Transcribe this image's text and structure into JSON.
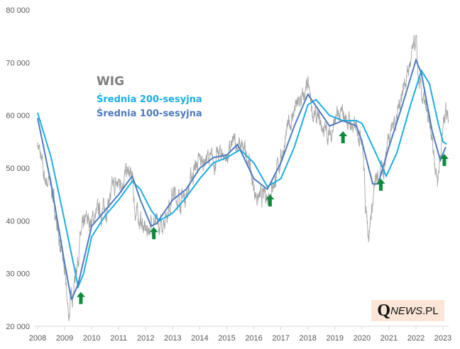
{
  "chart_data": {
    "type": "line",
    "title": "",
    "xlabel": "",
    "ylabel": "",
    "xlim": [
      2008,
      2023.3
    ],
    "ylim": [
      20000,
      80000
    ],
    "yticks": [
      "20 000",
      "30 000",
      "40 000",
      "50 000",
      "60 000",
      "70 000",
      "80 000"
    ],
    "ytick_values": [
      20000,
      30000,
      40000,
      50000,
      60000,
      70000,
      80000
    ],
    "xticks": [
      "2008",
      "2009",
      "2010",
      "2011",
      "2012",
      "2013",
      "2014",
      "2015",
      "2016",
      "2017",
      "2018",
      "2019",
      "2020",
      "2021",
      "2022",
      "2023"
    ],
    "legend": {
      "placement": "top-left",
      "title": "WIG",
      "entries": [
        "Średnia 200-sesyjna",
        "Średnia 100-sesyjna"
      ]
    },
    "series": [
      {
        "name": "WIG",
        "color": "#a6a6a6",
        "points": [
          [
            2008,
            55000
          ],
          [
            2008.25,
            48000
          ],
          [
            2008.5,
            47000
          ],
          [
            2008.75,
            38000
          ],
          [
            2009,
            30000
          ],
          [
            2009.15,
            22000
          ],
          [
            2009.4,
            30000
          ],
          [
            2009.6,
            37000
          ],
          [
            2009.8,
            40000
          ],
          [
            2010,
            40000
          ],
          [
            2010.3,
            42000
          ],
          [
            2010.5,
            42000
          ],
          [
            2010.8,
            46000
          ],
          [
            2011,
            47000
          ],
          [
            2011.3,
            49000
          ],
          [
            2011.5,
            48000
          ],
          [
            2011.6,
            42000
          ],
          [
            2011.8,
            40000
          ],
          [
            2012,
            38000
          ],
          [
            2012.3,
            40000
          ],
          [
            2012.5,
            38000
          ],
          [
            2012.8,
            42000
          ],
          [
            2013,
            45000
          ],
          [
            2013.3,
            44000
          ],
          [
            2013.5,
            45000
          ],
          [
            2013.8,
            50000
          ],
          [
            2014,
            51000
          ],
          [
            2014.3,
            52000
          ],
          [
            2014.5,
            51000
          ],
          [
            2014.8,
            53000
          ],
          [
            2015,
            52000
          ],
          [
            2015.3,
            55000
          ],
          [
            2015.5,
            54000
          ],
          [
            2015.8,
            52000
          ],
          [
            2016,
            46000
          ],
          [
            2016.2,
            44000
          ],
          [
            2016.5,
            45000
          ],
          [
            2016.8,
            48000
          ],
          [
            2017,
            52000
          ],
          [
            2017.3,
            58000
          ],
          [
            2017.5,
            61000
          ],
          [
            2017.8,
            63000
          ],
          [
            2018,
            65000
          ],
          [
            2018.2,
            60000
          ],
          [
            2018.5,
            58000
          ],
          [
            2018.8,
            56000
          ],
          [
            2019,
            59000
          ],
          [
            2019.3,
            60000
          ],
          [
            2019.5,
            59000
          ],
          [
            2019.8,
            57000
          ],
          [
            2020,
            57000
          ],
          [
            2020.15,
            42000
          ],
          [
            2020.25,
            38000
          ],
          [
            2020.5,
            47000
          ],
          [
            2020.8,
            50000
          ],
          [
            2021,
            57000
          ],
          [
            2021.3,
            60000
          ],
          [
            2021.5,
            65000
          ],
          [
            2021.8,
            70000
          ],
          [
            2022,
            74000
          ],
          [
            2022.1,
            66000
          ],
          [
            2022.4,
            60000
          ],
          [
            2022.6,
            55000
          ],
          [
            2022.8,
            48000
          ],
          [
            2022.95,
            55000
          ],
          [
            2023.1,
            62000
          ],
          [
            2023.2,
            60000
          ]
        ]
      },
      {
        "name": "Średnia 200-sesyjna",
        "color": "#1aaee6",
        "points": [
          [
            2008,
            60500
          ],
          [
            2008.5,
            52000
          ],
          [
            2009,
            40000
          ],
          [
            2009.5,
            27500
          ],
          [
            2009.7,
            30000
          ],
          [
            2010,
            37000
          ],
          [
            2010.5,
            41000
          ],
          [
            2011,
            44000
          ],
          [
            2011.5,
            47500
          ],
          [
            2011.8,
            46000
          ],
          [
            2012.2,
            42000
          ],
          [
            2012.5,
            40000
          ],
          [
            2013,
            41500
          ],
          [
            2013.5,
            44500
          ],
          [
            2014,
            48000
          ],
          [
            2014.5,
            51000
          ],
          [
            2015,
            52000
          ],
          [
            2015.5,
            53500
          ],
          [
            2016,
            51000
          ],
          [
            2016.5,
            46500
          ],
          [
            2017,
            48000
          ],
          [
            2017.5,
            54000
          ],
          [
            2018,
            62000
          ],
          [
            2018.3,
            63000
          ],
          [
            2018.8,
            60000
          ],
          [
            2019.3,
            59000
          ],
          [
            2019.8,
            59000
          ],
          [
            2020,
            58500
          ],
          [
            2020.5,
            53000
          ],
          [
            2020.9,
            48500
          ],
          [
            2021.3,
            53000
          ],
          [
            2021.8,
            62000
          ],
          [
            2022.2,
            68500
          ],
          [
            2022.5,
            66000
          ],
          [
            2022.8,
            59000
          ],
          [
            2023,
            55000
          ],
          [
            2023.15,
            54500
          ]
        ]
      },
      {
        "name": "Średnia 100-sesyjna",
        "color": "#4f7bbf",
        "points": [
          [
            2008,
            59500
          ],
          [
            2008.5,
            47000
          ],
          [
            2009,
            32000
          ],
          [
            2009.25,
            25000
          ],
          [
            2009.5,
            28000
          ],
          [
            2010,
            39000
          ],
          [
            2010.5,
            42000
          ],
          [
            2011,
            45000
          ],
          [
            2011.5,
            48500
          ],
          [
            2011.8,
            44000
          ],
          [
            2012.2,
            39000
          ],
          [
            2012.4,
            39500
          ],
          [
            2013,
            44000
          ],
          [
            2013.5,
            46000
          ],
          [
            2014,
            50000
          ],
          [
            2014.5,
            52000
          ],
          [
            2015,
            52500
          ],
          [
            2015.4,
            54500
          ],
          [
            2016,
            48000
          ],
          [
            2016.5,
            46000
          ],
          [
            2017,
            51000
          ],
          [
            2017.5,
            58000
          ],
          [
            2018,
            64000
          ],
          [
            2018.4,
            61000
          ],
          [
            2018.8,
            58000
          ],
          [
            2019.3,
            59000
          ],
          [
            2019.8,
            58000
          ],
          [
            2020,
            55000
          ],
          [
            2020.4,
            47000
          ],
          [
            2020.6,
            47000
          ],
          [
            2021,
            54000
          ],
          [
            2021.5,
            62000
          ],
          [
            2022,
            70500
          ],
          [
            2022.2,
            68000
          ],
          [
            2022.6,
            57000
          ],
          [
            2022.9,
            51500
          ],
          [
            2023.1,
            54000
          ]
        ]
      }
    ],
    "annotations": {
      "buy_arrows": [
        [
          2009.6,
          26500
        ],
        [
          2012.3,
          38800
        ],
        [
          2016.6,
          45000
        ],
        [
          2019.3,
          57000
        ],
        [
          2020.7,
          48000
        ],
        [
          2023.05,
          52700
        ]
      ],
      "arrow_color": "#0f8a3c"
    }
  },
  "watermark": {
    "q": "Q",
    "news": "NEWS",
    "pl": ".PL"
  }
}
